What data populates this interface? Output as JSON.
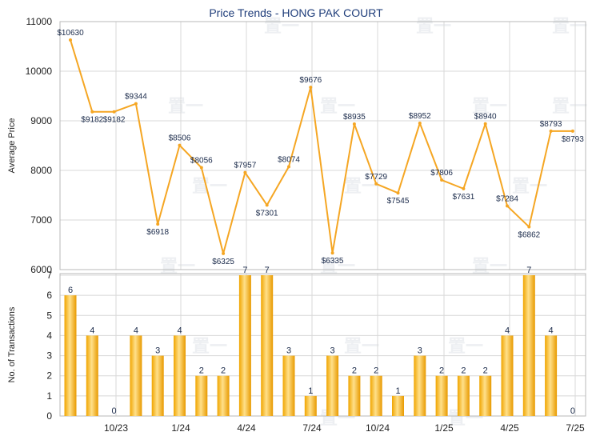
{
  "chart_title": "Price Trends - HONG PAK COURT",
  "colors": {
    "line": "#f5a623",
    "bar_light": "#ffe08a",
    "bar_dark": "#f0a500",
    "grid": "#d8d8d8",
    "title": "#1f3d7a"
  },
  "chart_data": [
    {
      "type": "line",
      "ylabel": "Average Price",
      "ylim": [
        6000,
        11000
      ],
      "yticks": [
        "6000",
        "7000",
        "8000",
        "9000",
        "10000",
        "11000"
      ],
      "grid": true,
      "series": [
        {
          "values": [
            10630,
            9182,
            9182,
            9344,
            6918,
            8506,
            8056,
            6325,
            7957,
            7301,
            8074,
            9676,
            6335,
            8935,
            7729,
            7545,
            8952,
            7806,
            7631,
            8940,
            7284,
            6862,
            8793,
            8793
          ],
          "labels": [
            "$10630",
            "$9182",
            "$9182",
            "$9344",
            "$6918",
            "$8506",
            "$8056",
            "$6325",
            "$7957",
            "$7301",
            "$8074",
            "$9676",
            "$6335",
            "$8935",
            "$7729",
            "$7545",
            "$8952",
            "$7806",
            "$7631",
            "$8940",
            "$7284",
            "$6862",
            "$8793",
            "$8793"
          ]
        }
      ]
    },
    {
      "type": "bar",
      "ylabel": "No. of Transactions",
      "ylim": [
        0,
        7
      ],
      "yticks": [
        "0",
        "1",
        "2",
        "3",
        "4",
        "5",
        "6",
        "7"
      ],
      "xticks": [
        "10/23",
        "1/24",
        "4/24",
        "7/24",
        "10/24",
        "1/25",
        "4/25",
        "7/25"
      ],
      "grid": true,
      "values": [
        6,
        4,
        0,
        4,
        3,
        4,
        2,
        2,
        7,
        7,
        3,
        1,
        3,
        2,
        2,
        1,
        3,
        2,
        2,
        2,
        4,
        7,
        4,
        0
      ]
    }
  ]
}
